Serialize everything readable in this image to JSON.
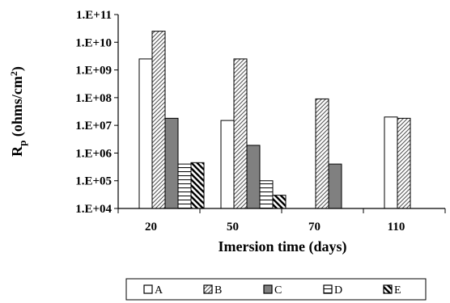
{
  "chart_data": {
    "type": "bar",
    "xlabel": "Imersion time (days)",
    "ylabel_main": "R",
    "ylabel_sub": "p",
    "ylabel_unit": " (ohms/cm",
    "ylabel_sup": "2",
    "ylabel_close": ")",
    "ylabel": "Rp (ohms/cm2)",
    "yscale": "log",
    "ylim": [
      10000,
      100000000000
    ],
    "yticks": [
      {
        "value": 10000,
        "label": "1.E+04"
      },
      {
        "value": 100000,
        "label": "1.E+05"
      },
      {
        "value": 1000000,
        "label": "1.E+06"
      },
      {
        "value": 10000000,
        "label": "1.E+07"
      },
      {
        "value": 100000000,
        "label": "1.E+08"
      },
      {
        "value": 1000000000,
        "label": "1.E+09"
      },
      {
        "value": 10000000000,
        "label": "1.E+10"
      },
      {
        "value": 100000000000,
        "label": "1.E+11"
      }
    ],
    "categories": [
      "20",
      "50",
      "70",
      "110"
    ],
    "series": [
      {
        "name": "A",
        "pattern": "white",
        "values": [
          2500000000,
          15000000,
          null,
          20000000
        ]
      },
      {
        "name": "B",
        "pattern": "diagonal",
        "values": [
          25000000000,
          2500000000,
          90000000,
          18000000
        ]
      },
      {
        "name": "C",
        "pattern": "gray",
        "values": [
          18000000,
          1900000,
          400000,
          null
        ]
      },
      {
        "name": "D",
        "pattern": "horizontal",
        "values": [
          400000,
          100000,
          null,
          null
        ]
      },
      {
        "name": "E",
        "pattern": "backdiagonal",
        "values": [
          450000,
          30000,
          null,
          null
        ]
      }
    ],
    "grid": false,
    "legend": "bottom"
  }
}
